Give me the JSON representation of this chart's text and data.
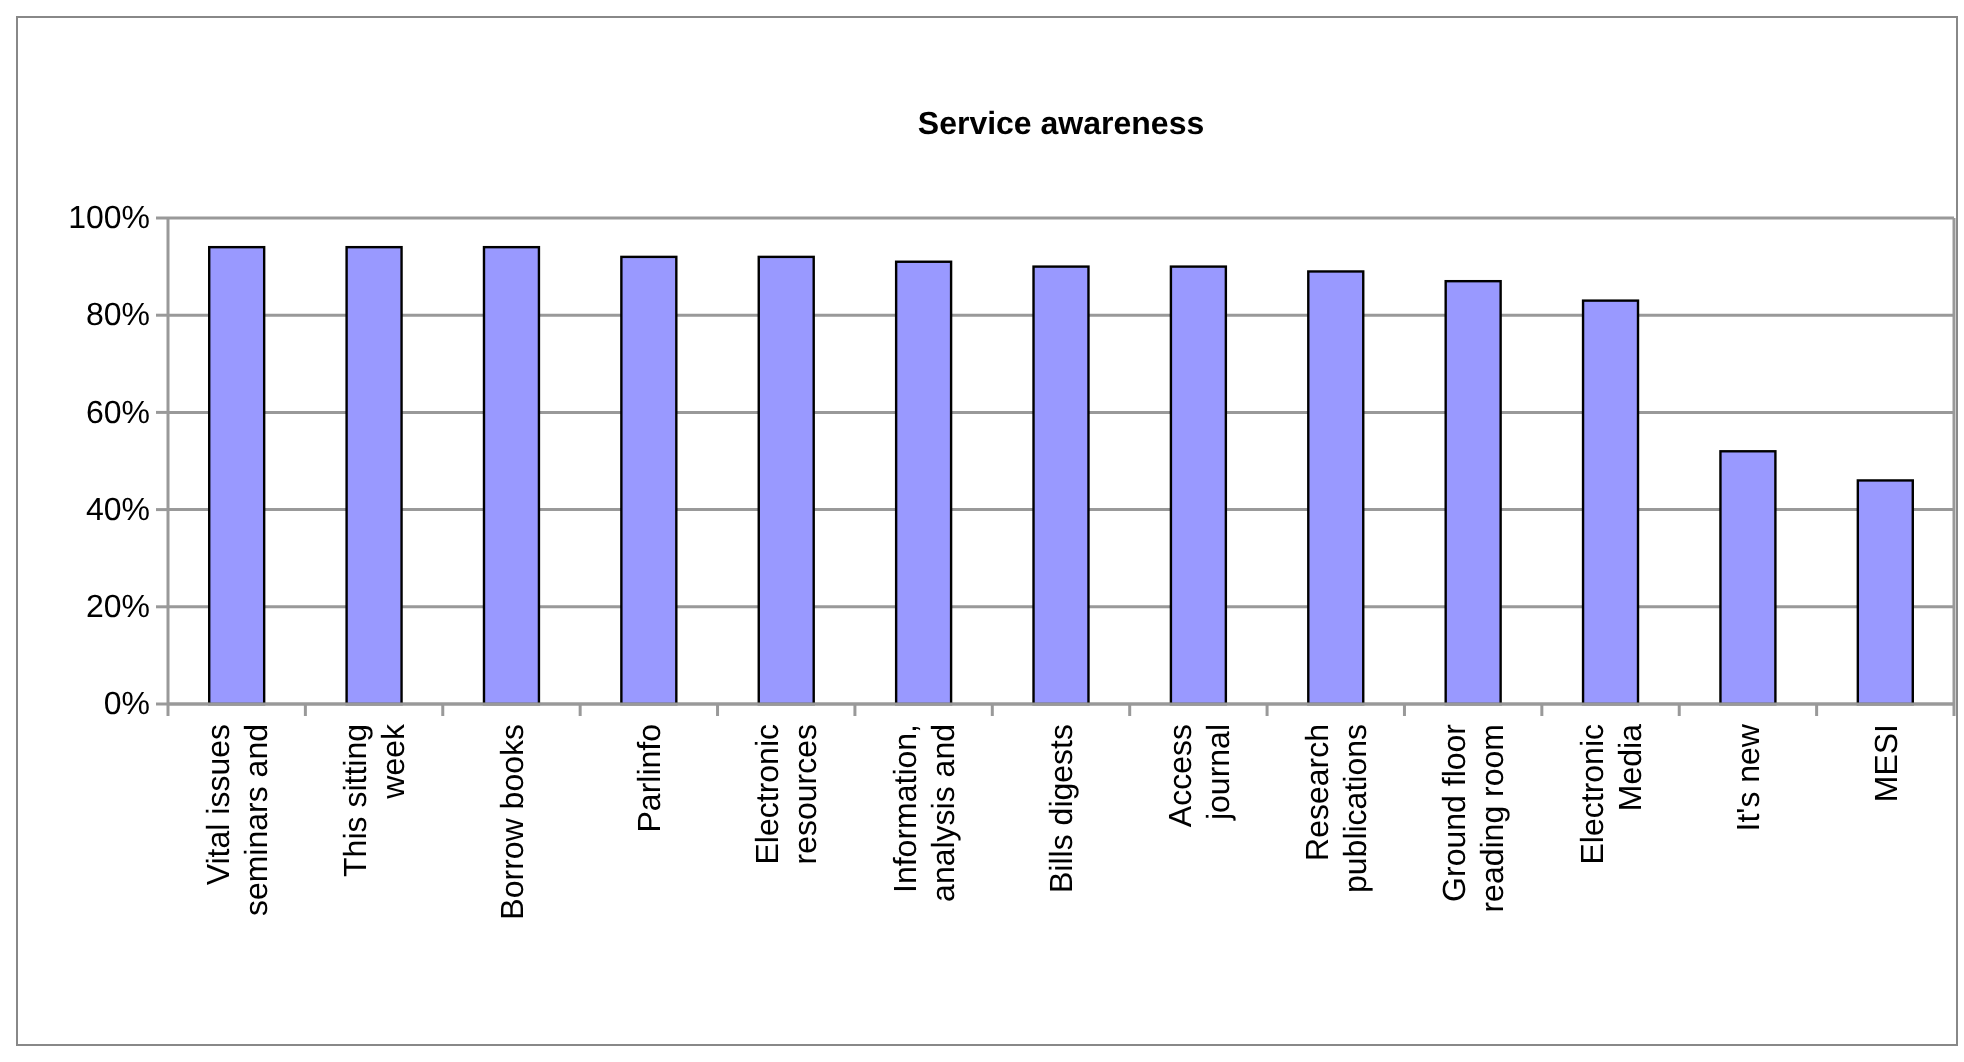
{
  "chart_data": {
    "type": "bar",
    "title": "Service awareness",
    "categories": [
      "Vital issues seminars and",
      "This sitting week",
      "Borrow books",
      "Parlinfo",
      "Electronic resources",
      "Information, analysis and",
      "Bills digests",
      "Access journal",
      "Research publications",
      "Ground floor reading room",
      "Electronic Media",
      "It's new",
      "MESI"
    ],
    "values": [
      94,
      94,
      94,
      92,
      92,
      91,
      90,
      90,
      89,
      87,
      83,
      52,
      46
    ],
    "color": "#9999ff",
    "ylim": [
      0,
      100
    ],
    "yticks": [
      {
        "value": 0,
        "label": "0%"
      },
      {
        "value": 20,
        "label": "20%"
      },
      {
        "value": 40,
        "label": "40%"
      },
      {
        "value": 60,
        "label": "60%"
      },
      {
        "value": 80,
        "label": "80%"
      },
      {
        "value": 100,
        "label": "100%"
      }
    ],
    "grid": "y"
  }
}
